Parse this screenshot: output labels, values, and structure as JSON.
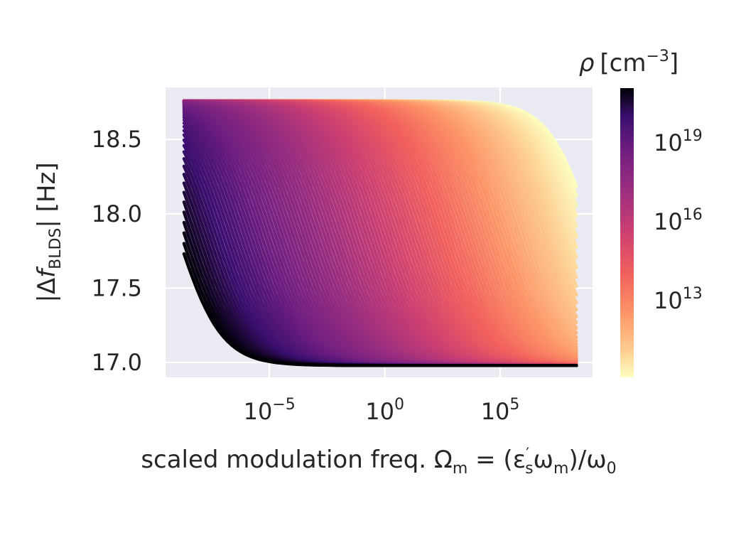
{
  "chart_data": {
    "type": "line",
    "x_scale": "log",
    "xlim_log10": [
      -9.5,
      9.0
    ],
    "ylim": [
      16.9,
      18.85
    ],
    "grid": true,
    "x_ticks": [
      {
        "log10": -5,
        "base": "10",
        "exp": "−5"
      },
      {
        "log10": 0,
        "base": "10",
        "exp": "0"
      },
      {
        "log10": 5,
        "base": "10",
        "exp": "5"
      }
    ],
    "y_ticks": [
      {
        "value": 17.0,
        "label": "17.0"
      },
      {
        "value": 17.5,
        "label": "17.5"
      },
      {
        "value": 18.0,
        "label": "18.0"
      },
      {
        "value": 18.5,
        "label": "18.5"
      }
    ],
    "curve_model": {
      "description": "sigmoid in log10(Omega_m) per carrier density",
      "f_low": 16.98,
      "f_high": 18.76,
      "x_min_log10": -8.7,
      "x_max_log10": 8.3,
      "rho_log10_range": [
        10.0,
        21.0
      ],
      "center_log10_at_rho_min": 9.0,
      "center_log10_at_rho_max": -9.0,
      "steepness": 1.05
    },
    "colorbar": {
      "label_symbol": "ρ",
      "label_unit": "[cm",
      "label_unit_exp": "−3",
      "label_close": "]",
      "colormap": "magma_r",
      "ticks": [
        {
          "log10": 13,
          "base": "10",
          "exp": "13"
        },
        {
          "log10": 16,
          "base": "10",
          "exp": "16"
        },
        {
          "log10": 19,
          "base": "10",
          "exp": "19"
        }
      ]
    },
    "xlabel": {
      "text": "scaled modulation freq. Ω",
      "sub_m": "m",
      "eq": " = (ε",
      "sup_prime": "′",
      "sub_s": "s",
      "omega": "ω",
      "sub_m2": "m",
      "close": ")/ω",
      "sub_0": "0"
    },
    "ylabel": {
      "pre": "|Δ",
      "f": "f",
      "sub": "BLDS",
      "post": "| [Hz]"
    },
    "colors": {
      "plot_bg": "#eaeaf2",
      "grid": "#ffffff",
      "text": "#262626"
    }
  }
}
